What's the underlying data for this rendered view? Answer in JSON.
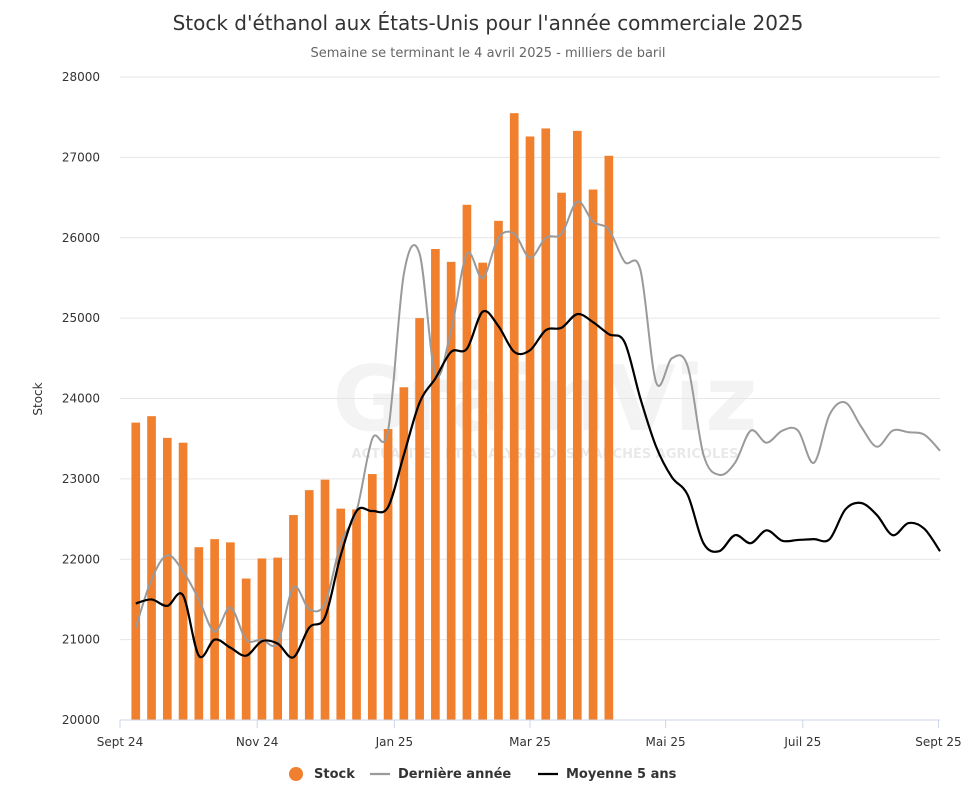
{
  "chart_data": {
    "type": "bar",
    "title": "Stock d'éthanol aux États-Unis pour l'année commerciale 2025",
    "subtitle": "Semaine se terminant le 4 avril 2025 - milliers de baril",
    "ylabel": "Stock",
    "ylim": [
      20000,
      28000
    ],
    "yticks": [
      "20000",
      "21000",
      "22000",
      "23000",
      "24000",
      "25000",
      "26000",
      "27000",
      "28000"
    ],
    "xlim": [
      0,
      52
    ],
    "xticks": [
      {
        "label": "Sept 24",
        "week": 0
      },
      {
        "label": "Nov 24",
        "week": 8.7
      },
      {
        "label": "Jan 25",
        "week": 17.4
      },
      {
        "label": "Mar 25",
        "week": 26
      },
      {
        "label": "Mai 25",
        "week": 34.6
      },
      {
        "label": "Juil 25",
        "week": 43.3
      },
      {
        "label": "Sept 25",
        "week": 51.9
      }
    ],
    "grid": true,
    "legend_position": "bottom",
    "watermark": {
      "logo": "GrainViz",
      "tagline": "ACTUALITÉS ET ANALYSES DES MARCHÉS AGRICOLES"
    },
    "series": [
      {
        "name": "Stock",
        "type": "bar",
        "color": "#f07f2e",
        "weeks": [
          1,
          2,
          3,
          4,
          5,
          6,
          7,
          8,
          9,
          10,
          11,
          12,
          13,
          14,
          15,
          16,
          17,
          18,
          19,
          20,
          21,
          22,
          23,
          24,
          25,
          26,
          27,
          28,
          29,
          30,
          31
        ],
        "values": [
          23700,
          23780,
          23510,
          23450,
          22150,
          22250,
          22210,
          21760,
          22010,
          22020,
          22550,
          22860,
          22990,
          22630,
          22620,
          23060,
          23620,
          24140,
          25000,
          25860,
          25700,
          26410,
          25690,
          26210,
          27550,
          27260,
          27360,
          26560,
          27330,
          26600,
          27020
        ]
      },
      {
        "name": "Dernière année",
        "type": "line",
        "color": "#9a9a9a",
        "weeks": [
          1,
          2,
          3,
          4,
          5,
          6,
          7,
          8,
          9,
          10,
          11,
          12,
          13,
          14,
          15,
          16,
          17,
          18,
          19,
          20,
          21,
          22,
          23,
          24,
          25,
          26,
          27,
          28,
          29,
          30,
          31,
          32,
          33,
          34,
          35,
          36,
          37,
          38,
          39,
          40,
          41,
          42,
          43,
          44,
          45,
          46,
          47,
          48,
          49,
          50,
          51,
          52
        ],
        "values": [
          21150,
          21750,
          22050,
          21850,
          21500,
          21100,
          21400,
          21000,
          21000,
          20960,
          21650,
          21380,
          21450,
          22200,
          22600,
          23500,
          23600,
          25550,
          25800,
          24300,
          24850,
          25800,
          25500,
          26000,
          26050,
          25750,
          26000,
          26050,
          26450,
          26200,
          26100,
          25700,
          25600,
          24200,
          24500,
          24400,
          23300,
          23050,
          23200,
          23600,
          23450,
          23600,
          23600,
          23200,
          23800,
          23950,
          23650,
          23400,
          23600,
          23580,
          23550,
          23350
        ]
      },
      {
        "name": "Moyenne 5 ans",
        "type": "line",
        "color": "#000000",
        "weeks": [
          1,
          2,
          3,
          4,
          5,
          6,
          7,
          8,
          9,
          10,
          11,
          12,
          13,
          14,
          15,
          16,
          17,
          18,
          19,
          20,
          21,
          22,
          23,
          24,
          25,
          26,
          27,
          28,
          29,
          30,
          31,
          32,
          33,
          34,
          35,
          36,
          37,
          38,
          39,
          40,
          41,
          42,
          43,
          44,
          45,
          46,
          47,
          48,
          49,
          50,
          51,
          52
        ],
        "values": [
          21450,
          21500,
          21420,
          21550,
          20800,
          21000,
          20900,
          20800,
          20980,
          20950,
          20780,
          21150,
          21280,
          22050,
          22600,
          22600,
          22650,
          23300,
          23950,
          24250,
          24580,
          24620,
          25080,
          24900,
          24580,
          24600,
          24850,
          24880,
          25050,
          24950,
          24800,
          24700,
          24000,
          23400,
          23020,
          22800,
          22200,
          22100,
          22300,
          22200,
          22360,
          22230,
          22240,
          22250,
          22250,
          22620,
          22700,
          22550,
          22300,
          22450,
          22380,
          22100
        ]
      }
    ]
  }
}
